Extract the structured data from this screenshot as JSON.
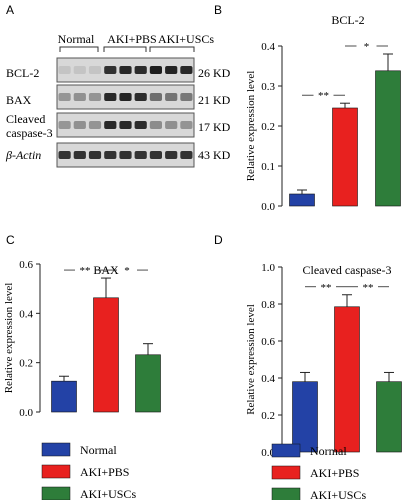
{
  "panel_labels": {
    "a": "A",
    "b": "B",
    "c": "C",
    "d": "D"
  },
  "blot": {
    "group_labels": [
      "Normal",
      "AKI+PBS",
      "AKI+USCs"
    ],
    "rows": [
      {
        "label": "BCL-2",
        "size": "26 KD",
        "intensity": [
          0.12,
          0.12,
          0.12,
          0.85,
          0.9,
          0.88,
          0.95,
          0.92,
          0.9
        ]
      },
      {
        "label": "BAX",
        "size": "21 KD",
        "intensity": [
          0.35,
          0.38,
          0.36,
          0.9,
          0.92,
          0.88,
          0.55,
          0.52,
          0.5
        ]
      },
      {
        "label_lines": [
          "Cleaved",
          "caspase-3"
        ],
        "size": "17 KD",
        "intensity": [
          0.35,
          0.38,
          0.36,
          0.9,
          0.9,
          0.88,
          0.4,
          0.38,
          0.36
        ]
      },
      {
        "label": "β-Actin",
        "size": "43 KD",
        "intensity": [
          0.85,
          0.85,
          0.85,
          0.85,
          0.85,
          0.85,
          0.85,
          0.85,
          0.85
        ]
      }
    ]
  },
  "colors": {
    "normal": "#2342a6",
    "aki_pbs": "#e8211f",
    "aki_uscs": "#2e7d3a"
  },
  "chart_data": [
    {
      "id": "B",
      "type": "bar",
      "title": "BCL-2",
      "categories": [
        "Normal",
        "AKI+PBS",
        "AKI+USCs"
      ],
      "values": [
        0.03,
        0.245,
        0.338
      ],
      "errors": [
        0.01,
        0.012,
        0.042
      ],
      "ylabel": "Relative expression level",
      "ylim": [
        0,
        0.4
      ],
      "yticks": [
        "0.0",
        "0.1",
        "0.2",
        "0.3",
        "0.4"
      ],
      "ytick_values": [
        0,
        0.1,
        0.2,
        0.3,
        0.4
      ],
      "significance": [
        {
          "from": 0,
          "to": 1,
          "label": "**"
        },
        {
          "from": 1,
          "to": 2,
          "label": "*"
        }
      ]
    },
    {
      "id": "C",
      "type": "bar",
      "title": "BAX",
      "categories": [
        "Normal",
        "AKI+PBS",
        "AKI+USCs"
      ],
      "values": [
        0.125,
        0.463,
        0.232
      ],
      "errors": [
        0.02,
        0.08,
        0.045
      ],
      "ylabel": "Relative expression level",
      "ylim": [
        0,
        0.6
      ],
      "yticks": [
        "0.0",
        "0.2",
        "0.4",
        "0.6"
      ],
      "ytick_values": [
        0,
        0.2,
        0.4,
        0.6
      ],
      "significance": [
        {
          "from": 0,
          "to": 1,
          "label": "**"
        },
        {
          "from": 1,
          "to": 2,
          "label": "*"
        }
      ]
    },
    {
      "id": "D",
      "type": "bar",
      "title": "Cleaved caspase-3",
      "categories": [
        "Normal",
        "AKI+PBS",
        "AKI+USCs"
      ],
      "values": [
        0.38,
        0.785,
        0.38
      ],
      "errors": [
        0.05,
        0.065,
        0.05
      ],
      "ylabel": "Relative expression level",
      "ylim": [
        0,
        1.0
      ],
      "yticks": [
        "0.0",
        "0.2",
        "0.4",
        "0.6",
        "0.8",
        "1.0"
      ],
      "ytick_values": [
        0,
        0.2,
        0.4,
        0.6,
        0.8,
        1.0
      ],
      "significance": [
        {
          "from": 0,
          "to": 1,
          "label": "**"
        },
        {
          "from": 1,
          "to": 2,
          "label": "**"
        }
      ]
    }
  ],
  "legend": [
    "Normal",
    "AKI+PBS",
    "AKI+USCs"
  ]
}
